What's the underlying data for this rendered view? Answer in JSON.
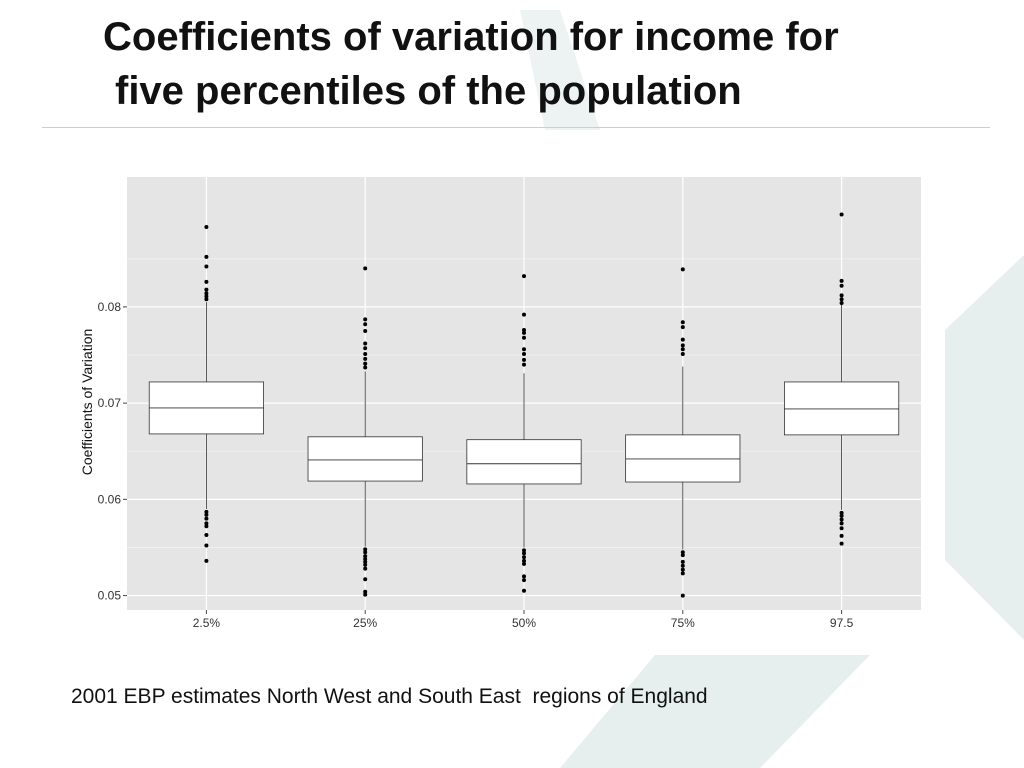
{
  "slide": {
    "title_line1": "Coefficients of variation for income for",
    "title_line2": "five percentiles of the population",
    "caption": "2001 EBP estimates North West and South East  regions of England",
    "accent_color": "#c8d9a4",
    "decor_color": "#e6eeee"
  },
  "chart_data": {
    "type": "box",
    "title": "",
    "xlabel": "",
    "ylabel": "Coefficients of Variation",
    "categories": [
      "2.5%",
      "25%",
      "50%",
      "75%",
      "97.5"
    ],
    "ylim": [
      0.0485,
      0.0935
    ],
    "yticks": [
      0.05,
      0.06,
      0.07,
      0.08
    ],
    "ytick_labels": [
      "0.05",
      "0.06",
      "0.07",
      "0.08"
    ],
    "grid": true,
    "panel_color": "#e5e5e5",
    "boxes": [
      {
        "category": "2.5%",
        "q1": 0.0668,
        "median": 0.0695,
        "q3": 0.0722,
        "whisker_low": 0.059,
        "whisker_high": 0.0805,
        "outliers": [
          0.0883,
          0.0852,
          0.0842,
          0.0826,
          0.0818,
          0.0814,
          0.0811,
          0.0808,
          0.0587,
          0.0584,
          0.058,
          0.0575,
          0.0572,
          0.0563,
          0.0552,
          0.0536
        ]
      },
      {
        "category": "25%",
        "q1": 0.0619,
        "median": 0.0641,
        "q3": 0.0665,
        "whisker_low": 0.0551,
        "whisker_high": 0.0733,
        "outliers": [
          0.084,
          0.0787,
          0.0782,
          0.0775,
          0.0762,
          0.0757,
          0.0751,
          0.0746,
          0.0741,
          0.0737,
          0.0548,
          0.0545,
          0.0541,
          0.0538,
          0.0535,
          0.0532,
          0.0528,
          0.0517,
          0.0504,
          0.0501
        ]
      },
      {
        "category": "50%",
        "q1": 0.0616,
        "median": 0.0637,
        "q3": 0.0662,
        "whisker_low": 0.055,
        "whisker_high": 0.0731,
        "outliers": [
          0.0832,
          0.0792,
          0.0776,
          0.0773,
          0.0768,
          0.0756,
          0.0751,
          0.0745,
          0.074,
          0.0547,
          0.0544,
          0.054,
          0.0536,
          0.0533,
          0.052,
          0.0516,
          0.0505
        ]
      },
      {
        "category": "75%",
        "q1": 0.0618,
        "median": 0.0642,
        "q3": 0.0667,
        "whisker_low": 0.0548,
        "whisker_high": 0.0738,
        "outliers": [
          0.0839,
          0.0784,
          0.0779,
          0.0766,
          0.076,
          0.0756,
          0.0751,
          0.0545,
          0.0542,
          0.0535,
          0.0531,
          0.0527,
          0.0523,
          0.05
        ]
      },
      {
        "category": "97.5",
        "q1": 0.0667,
        "median": 0.0694,
        "q3": 0.0722,
        "whisker_low": 0.0589,
        "whisker_high": 0.0803,
        "outliers": [
          0.0896,
          0.0827,
          0.0822,
          0.0812,
          0.0808,
          0.0804,
          0.0586,
          0.0583,
          0.0579,
          0.0575,
          0.057,
          0.0562,
          0.0554
        ]
      }
    ]
  }
}
